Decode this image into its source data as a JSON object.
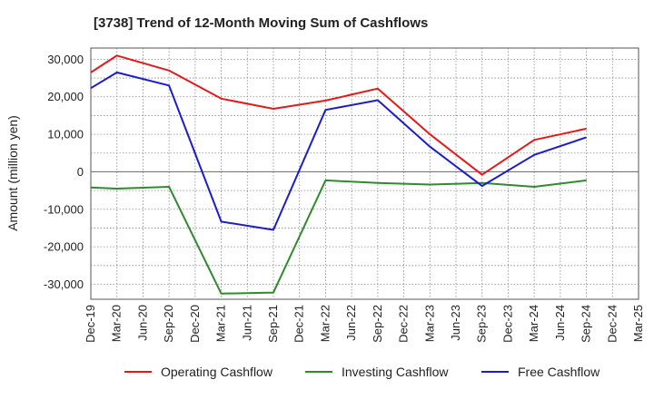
{
  "chart_data": {
    "type": "line",
    "title": "[3738]  Trend of 12-Month Moving Sum of Cashflows",
    "xlabel": "",
    "ylabel": "Amount (million yen)",
    "categories": [
      "Dec-19",
      "Mar-20",
      "Jun-20",
      "Sep-20",
      "Dec-20",
      "Mar-21",
      "Jun-21",
      "Sep-21",
      "Dec-21",
      "Mar-22",
      "Jun-22",
      "Sep-22",
      "Dec-22",
      "Mar-23",
      "Jun-23",
      "Sep-23",
      "Dec-23",
      "Mar-24",
      "Jun-24",
      "Sep-24",
      "Dec-24",
      "Mar-25"
    ],
    "ylim": [
      -34000,
      33000
    ],
    "yticks": [
      30000,
      20000,
      10000,
      0,
      -10000,
      -20000,
      -30000
    ],
    "ytick_labels": [
      "30,000",
      "20,000",
      "10,000",
      "0",
      "-10,000",
      "-20,000",
      "-30,000"
    ],
    "grid": true,
    "legend_position": "bottom",
    "series": [
      {
        "name": "Operating Cashflow",
        "color": "#e31a1c",
        "values": [
          26500,
          31000,
          null,
          27000,
          null,
          19500,
          null,
          16800,
          null,
          19000,
          null,
          22200,
          null,
          10000,
          null,
          -800,
          null,
          8500,
          null,
          11500,
          null,
          null
        ]
      },
      {
        "name": "Investing Cashflow",
        "color": "#2e8b2e",
        "values": [
          -4200,
          -4500,
          null,
          -4000,
          null,
          -32500,
          null,
          -32200,
          null,
          -2300,
          null,
          -3000,
          null,
          -3400,
          null,
          -3000,
          null,
          -4000,
          null,
          -2300,
          null,
          null
        ]
      },
      {
        "name": "Free Cashflow",
        "color": "#1c1ccc",
        "values": [
          22300,
          26500,
          null,
          23000,
          null,
          -13300,
          null,
          -15500,
          null,
          16500,
          null,
          19100,
          null,
          6700,
          null,
          -3800,
          null,
          4500,
          null,
          9200,
          null,
          null
        ]
      }
    ]
  }
}
